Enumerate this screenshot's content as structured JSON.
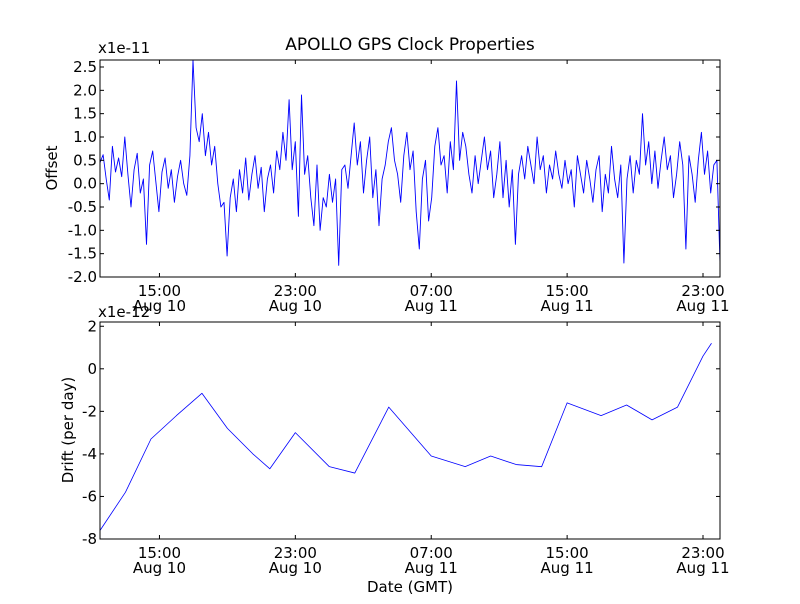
{
  "figure": {
    "title": "APOLLO GPS Clock Properties",
    "xlabel": "Date (GMT)"
  },
  "chart_data": [
    {
      "type": "line",
      "title": "APOLLO GPS Clock Properties",
      "xlabel": "",
      "ylabel": "Offset",
      "y_multiplier_label": "x1e-11",
      "series_color": "#0000ff",
      "grid": false,
      "xlim": [
        "2010-08-10T11:30:00",
        "2010-08-12T00:00:00"
      ],
      "ylim": [
        -2.0,
        2.65
      ],
      "ytick_labels": [
        "-2.0",
        "-1.5",
        "-1.0",
        "-0.5",
        "0.0",
        "0.5",
        "1.0",
        "1.5",
        "2.0",
        "2.5"
      ],
      "xtick_labels": [
        [
          "15:00",
          "Aug 10"
        ],
        [
          "23:00",
          "Aug 10"
        ],
        [
          "07:00",
          "Aug 11"
        ],
        [
          "15:00",
          "Aug 11"
        ],
        [
          "23:00",
          "Aug 11"
        ]
      ],
      "series": [
        {
          "x_start": "2010-08-10T11:30:00",
          "x_end": "2010-08-12T00:00:00",
          "y": [
            0.45,
            0.62,
            0.1,
            -0.35,
            0.8,
            0.25,
            0.55,
            0.15,
            1.0,
            0.2,
            -0.5,
            0.3,
            0.65,
            -0.2,
            0.1,
            -1.3,
            0.4,
            0.7,
            0.05,
            -0.6,
            0.25,
            0.55,
            -0.1,
            0.3,
            -0.4,
            0.15,
            0.5,
            0.0,
            -0.25,
            0.6,
            2.75,
            1.2,
            0.9,
            1.5,
            0.6,
            1.1,
            0.4,
            0.8,
            0.0,
            -0.5,
            -0.4,
            -1.55,
            -0.3,
            0.1,
            -0.6,
            0.3,
            -0.2,
            0.55,
            -0.35,
            0.2,
            0.6,
            -0.1,
            0.35,
            -0.6,
            0.1,
            0.4,
            -0.2,
            0.7,
            0.3,
            1.1,
            0.5,
            1.8,
            0.3,
            0.9,
            -0.7,
            1.9,
            0.2,
            0.6,
            -0.3,
            -0.9,
            0.4,
            -1.0,
            -0.3,
            -0.5,
            0.2,
            -0.4,
            0.1,
            -1.75,
            0.3,
            0.4,
            -0.1,
            0.6,
            1.3,
            0.4,
            0.9,
            -0.2,
            0.5,
            1.0,
            -0.3,
            0.3,
            -0.9,
            0.1,
            0.4,
            0.9,
            1.2,
            0.5,
            0.2,
            -0.4,
            0.6,
            1.1,
            0.3,
            0.7,
            -0.6,
            -1.4,
            0.1,
            0.5,
            -0.8,
            -0.3,
            0.8,
            1.2,
            0.4,
            0.6,
            -0.2,
            0.9,
            0.3,
            2.2,
            0.5,
            1.1,
            0.8,
            0.2,
            -0.2,
            0.6,
            0.0,
            0.5,
            1.0,
            0.3,
            0.7,
            -0.3,
            0.2,
            0.9,
            -0.3,
            0.5,
            -0.5,
            0.3,
            -1.3,
            0.2,
            0.6,
            0.1,
            0.8,
            0.4,
            0.0,
            1.0,
            0.3,
            0.6,
            -0.2,
            0.4,
            0.1,
            0.7,
            0.2,
            -0.1,
            0.5,
            0.0,
            0.3,
            -0.5,
            0.6,
            0.2,
            -0.2,
            0.5,
            0.1,
            -0.4,
            0.3,
            0.6,
            -0.6,
            0.2,
            -0.2,
            0.8,
            0.1,
            -0.3,
            0.4,
            -1.7,
            0.1,
            0.6,
            -0.2,
            0.5,
            0.2,
            1.5,
            0.4,
            0.9,
            0.0,
            0.7,
            -0.1,
            0.5,
            1.0,
            0.3,
            0.6,
            -0.3,
            0.2,
            0.9,
            0.4,
            -1.4,
            0.6,
            0.2,
            -0.4,
            0.5,
            1.1,
            0.2,
            0.7,
            -0.2,
            0.4,
            0.5,
            -1.7
          ]
        }
      ]
    },
    {
      "type": "line",
      "title": "",
      "xlabel": "Date (GMT)",
      "ylabel": "Drift (per day)",
      "y_multiplier_label": "x1e-12",
      "series_color": "#0000ff",
      "grid": false,
      "xlim": [
        "2010-08-10T11:30:00",
        "2010-08-12T00:00:00"
      ],
      "ylim": [
        -8,
        2.2
      ],
      "ytick_labels": [
        "-8",
        "-6",
        "-4",
        "-2",
        "0",
        "2"
      ],
      "xtick_labels": [
        [
          "15:00",
          "Aug 10"
        ],
        [
          "23:00",
          "Aug 10"
        ],
        [
          "07:00",
          "Aug 11"
        ],
        [
          "15:00",
          "Aug 11"
        ],
        [
          "23:00",
          "Aug 11"
        ]
      ],
      "series": [
        {
          "x": [
            "2010-08-10T11:30:00",
            "2010-08-10T13:00:00",
            "2010-08-10T14:30:00",
            "2010-08-10T16:00:00",
            "2010-08-10T17:30:00",
            "2010-08-10T19:00:00",
            "2010-08-10T20:30:00",
            "2010-08-10T21:30:00",
            "2010-08-10T23:00:00",
            "2010-08-11T01:00:00",
            "2010-08-11T02:30:00",
            "2010-08-11T04:30:00",
            "2010-08-11T07:00:00",
            "2010-08-11T09:00:00",
            "2010-08-11T10:30:00",
            "2010-08-11T12:00:00",
            "2010-08-11T13:30:00",
            "2010-08-11T15:00:00",
            "2010-08-11T17:00:00",
            "2010-08-11T18:30:00",
            "2010-08-11T20:00:00",
            "2010-08-11T21:30:00",
            "2010-08-11T23:00:00",
            "2010-08-11T23:30:00"
          ],
          "y": [
            -7.6,
            -5.8,
            -3.3,
            -2.2,
            -1.15,
            -2.8,
            -4.0,
            -4.7,
            -3.0,
            -4.6,
            -4.9,
            -1.8,
            -4.1,
            -4.6,
            -4.1,
            -4.5,
            -4.6,
            -1.6,
            -2.2,
            -1.7,
            -2.4,
            -1.8,
            0.6,
            1.2
          ]
        }
      ]
    }
  ]
}
